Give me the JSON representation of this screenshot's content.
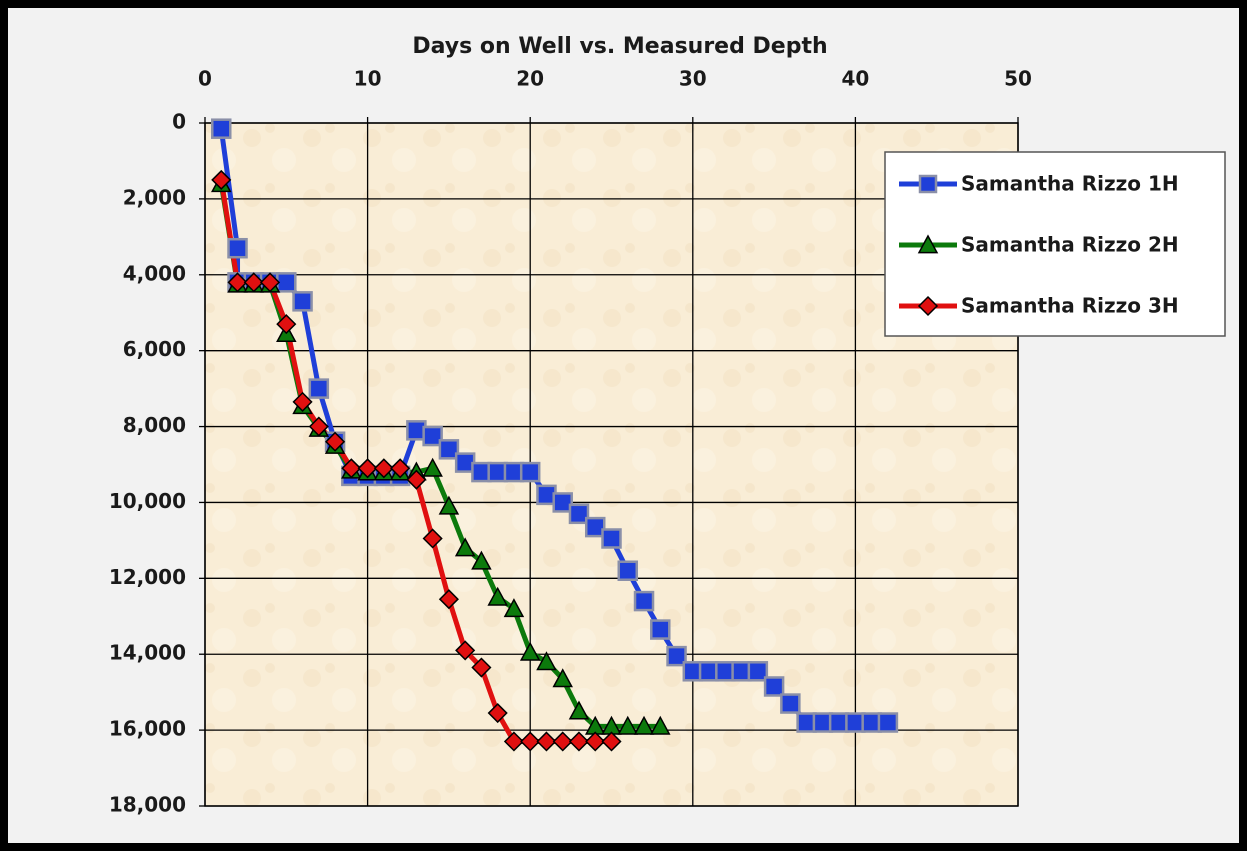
{
  "chart_data": {
    "type": "line",
    "title": "Days on Well vs. Measured Depth",
    "xlim": [
      0,
      50
    ],
    "xticks": [
      0,
      10,
      20,
      30,
      40,
      50
    ],
    "ylim": [
      0,
      18000
    ],
    "yticks": [
      0,
      {
        "value": 2000,
        "label": "2,000"
      },
      {
        "value": 4000,
        "label": "4,000"
      },
      {
        "value": 6000,
        "label": "6,000"
      },
      {
        "value": 8000,
        "label": "8,000"
      },
      {
        "value": 10000,
        "label": "10,000"
      },
      {
        "value": 12000,
        "label": "12,000"
      },
      {
        "value": 14000,
        "label": "14,000"
      },
      {
        "value": 16000,
        "label": "16,000"
      },
      {
        "value": 18000,
        "label": "18,000"
      }
    ],
    "y_inverted": true,
    "x_axis_position": "top",
    "grid": true,
    "legend": "upper right",
    "series": [
      {
        "name": "Samantha Rizzo 1H",
        "color": "#1f3fd8",
        "marker": "square",
        "x": [
          1,
          2,
          2,
          3,
          4,
          5,
          6,
          7,
          8,
          9,
          10,
          11,
          12,
          13,
          14,
          15,
          16,
          17,
          18,
          19,
          20,
          21,
          22,
          23,
          24,
          25,
          26,
          27,
          28,
          29,
          30,
          31,
          32,
          33,
          34,
          35,
          36,
          37,
          38,
          39,
          40,
          41,
          42
        ],
        "values": [
          150,
          3300,
          4200,
          4200,
          4200,
          4200,
          4700,
          7000,
          8400,
          9300,
          9300,
          9300,
          9300,
          8100,
          8250,
          8600,
          8950,
          9200,
          9200,
          9200,
          9200,
          9800,
          10000,
          10300,
          10650,
          10950,
          11800,
          12600,
          13350,
          14050,
          14450,
          14450,
          14450,
          14450,
          14450,
          14850,
          15300,
          15800,
          15800,
          15800,
          15800,
          15800,
          15800
        ]
      },
      {
        "name": "Samantha Rizzo 2H",
        "color": "#0c7a0c",
        "marker": "triangle",
        "x": [
          1,
          2,
          3,
          4,
          5,
          6,
          7,
          8,
          9,
          10,
          11,
          12,
          13,
          14,
          15,
          16,
          17,
          18,
          19,
          20,
          21,
          22,
          23,
          24,
          25,
          26,
          27,
          28
        ],
        "values": [
          1600,
          4250,
          4250,
          4250,
          5550,
          7450,
          8050,
          8500,
          9150,
          9200,
          9200,
          9200,
          9200,
          9100,
          10100,
          11200,
          11550,
          12500,
          12800,
          13950,
          14200,
          14650,
          15500,
          15900,
          15900,
          15900,
          15900,
          15900
        ]
      },
      {
        "name": "Samantha Rizzo 3H",
        "color": "#e01010",
        "marker": "diamond",
        "x": [
          1,
          2,
          3,
          4,
          5,
          6,
          7,
          8,
          9,
          10,
          11,
          12,
          13,
          14,
          15,
          16,
          17,
          18,
          19,
          20,
          21,
          22,
          23,
          24,
          25
        ],
        "values": [
          1500,
          4200,
          4200,
          4200,
          5300,
          7350,
          8000,
          8400,
          9100,
          9100,
          9100,
          9100,
          9400,
          10950,
          12550,
          13900,
          14350,
          15550,
          16300,
          16300,
          16300,
          16300,
          16300,
          16300,
          16300
        ]
      }
    ]
  }
}
